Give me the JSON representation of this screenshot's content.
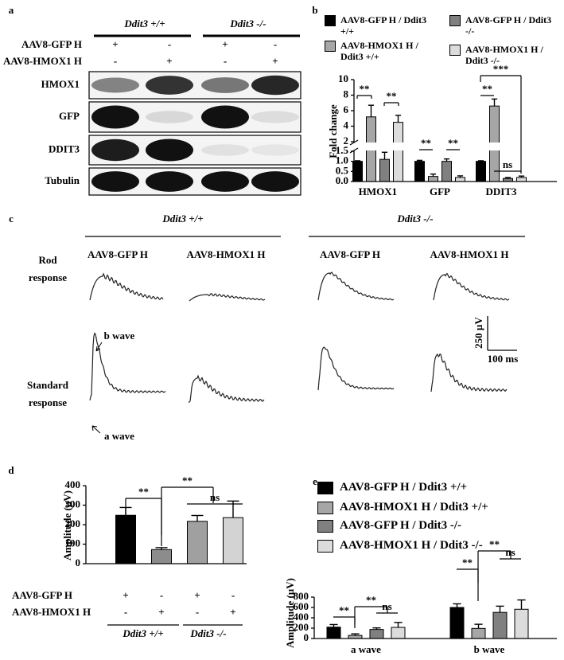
{
  "panel_labels": [
    "a",
    "b",
    "c",
    "d",
    "e"
  ],
  "blot_panel": {
    "groups": [
      "Ddit3 +/+",
      "Ddit3 -/-"
    ],
    "rows": [
      {
        "label": "AAV8-GFP H",
        "signs": [
          "+",
          "-",
          "+",
          "-"
        ]
      },
      {
        "label": "AAV8-HMOX1 H",
        "signs": [
          "-",
          "+",
          "-",
          "+"
        ]
      }
    ],
    "blots": [
      "HMOX1",
      "GFP",
      "DDIT3",
      "Tubulin"
    ]
  },
  "erg_panel": {
    "groups": [
      "Ddit3 +/+",
      "Ddit3 -/-"
    ],
    "columns": [
      "AAV8-GFP H",
      "AAV8-HMOX1 H",
      "AAV8-GFP H",
      "AAV8-HMOX1 H"
    ],
    "rows": [
      [
        "Rod",
        "response"
      ],
      [
        "Standard",
        "response"
      ]
    ],
    "wave_labels": [
      "b wave",
      "a wave"
    ],
    "scale_labels": [
      "250 µV",
      "100 ms"
    ]
  },
  "chart_data": [
    {
      "type": "bar",
      "ylabel": "Fold change",
      "categories": [
        "HMOX1",
        "GFP",
        "DDIT3"
      ],
      "series": [
        {
          "name": "AAV8-GFP H / Ddit3 +/+",
          "color": "#000000",
          "values": [
            1.0,
            1.0,
            1.0
          ],
          "errors": [
            0.03,
            0.05,
            0.03
          ]
        },
        {
          "name": "AAV8-HMOX1 H / Ddit3 +/+",
          "color": "#a6a6a6",
          "values": [
            5.2,
            0.25,
            6.6
          ],
          "errors": [
            1.5,
            0.12,
            0.9
          ]
        },
        {
          "name": "AAV8-GFP H / Ddit3 -/-",
          "color": "#808080",
          "values": [
            1.1,
            1.0,
            0.15
          ],
          "errors": [
            0.35,
            0.12,
            0.05
          ]
        },
        {
          "name": "AAV8-HMOX1 H / Ddit3 -/-",
          "color": "#dcdcdc",
          "values": [
            4.5,
            0.2,
            0.2
          ],
          "errors": [
            0.9,
            0.08,
            0.07
          ]
        }
      ],
      "ylim": [
        0,
        10
      ],
      "axis_break": [
        1.5,
        2
      ],
      "yticks": [
        {
          "value": 0,
          "label": "0.0"
        },
        {
          "value": 0.5,
          "label": "0.5"
        },
        {
          "value": 1,
          "label": "1.0"
        },
        {
          "value": 1.5,
          "label": "1.5"
        },
        2,
        4,
        6,
        8,
        10
      ],
      "annotations": [
        "**",
        "**",
        "**",
        "**",
        "**",
        "***",
        "ns"
      ]
    },
    {
      "type": "bar",
      "ylabel": "Amplitude (µV)",
      "values": [
        248,
        72,
        217,
        236
      ],
      "errors": [
        40,
        10,
        30,
        85
      ],
      "colors": [
        "#000000",
        "#8c8c8c",
        "#a0a0a0",
        "#d3d3d3"
      ],
      "ylim": [
        0,
        400
      ],
      "yticks": [
        0,
        100,
        200,
        300,
        400
      ],
      "rows": [
        {
          "label": "AAV8-GFP H",
          "signs": [
            "+",
            "-",
            "+",
            "-"
          ]
        },
        {
          "label": "AAV8-HMOX1 H",
          "signs": [
            "-",
            "+",
            "-",
            "+"
          ]
        }
      ],
      "groups": [
        "Ddit3 +/+",
        "Ddit3 -/-"
      ],
      "annotations": [
        "**",
        "**",
        "ns"
      ]
    },
    {
      "type": "bar",
      "ylabel": "Amplitude (µV)",
      "categories": [
        "a wave",
        "b wave"
      ],
      "series": [
        {
          "name": "AAV8-GFP H / Ddit3 +/+",
          "color": "#000000",
          "values": [
            220,
            600
          ],
          "errors": [
            50,
            70
          ]
        },
        {
          "name": "AAV8-HMOX1 H / Ddit3 +/+",
          "color": "#a6a6a6",
          "values": [
            60,
            195
          ],
          "errors": [
            30,
            80
          ]
        },
        {
          "name": "AAV8-GFP H / Ddit3 -/-",
          "color": "#808080",
          "values": [
            175,
            505
          ],
          "errors": [
            30,
            120
          ]
        },
        {
          "name": "AAV8-HMOX1 H / Ddit3 -/-",
          "color": "#dcdcdc",
          "values": [
            215,
            565
          ],
          "errors": [
            95,
            180
          ]
        }
      ],
      "ylim": [
        0,
        800
      ],
      "yticks": [
        0,
        200,
        400,
        600,
        800
      ],
      "annotations": [
        "**",
        "**",
        "ns",
        "**",
        "**",
        "ns"
      ]
    }
  ]
}
